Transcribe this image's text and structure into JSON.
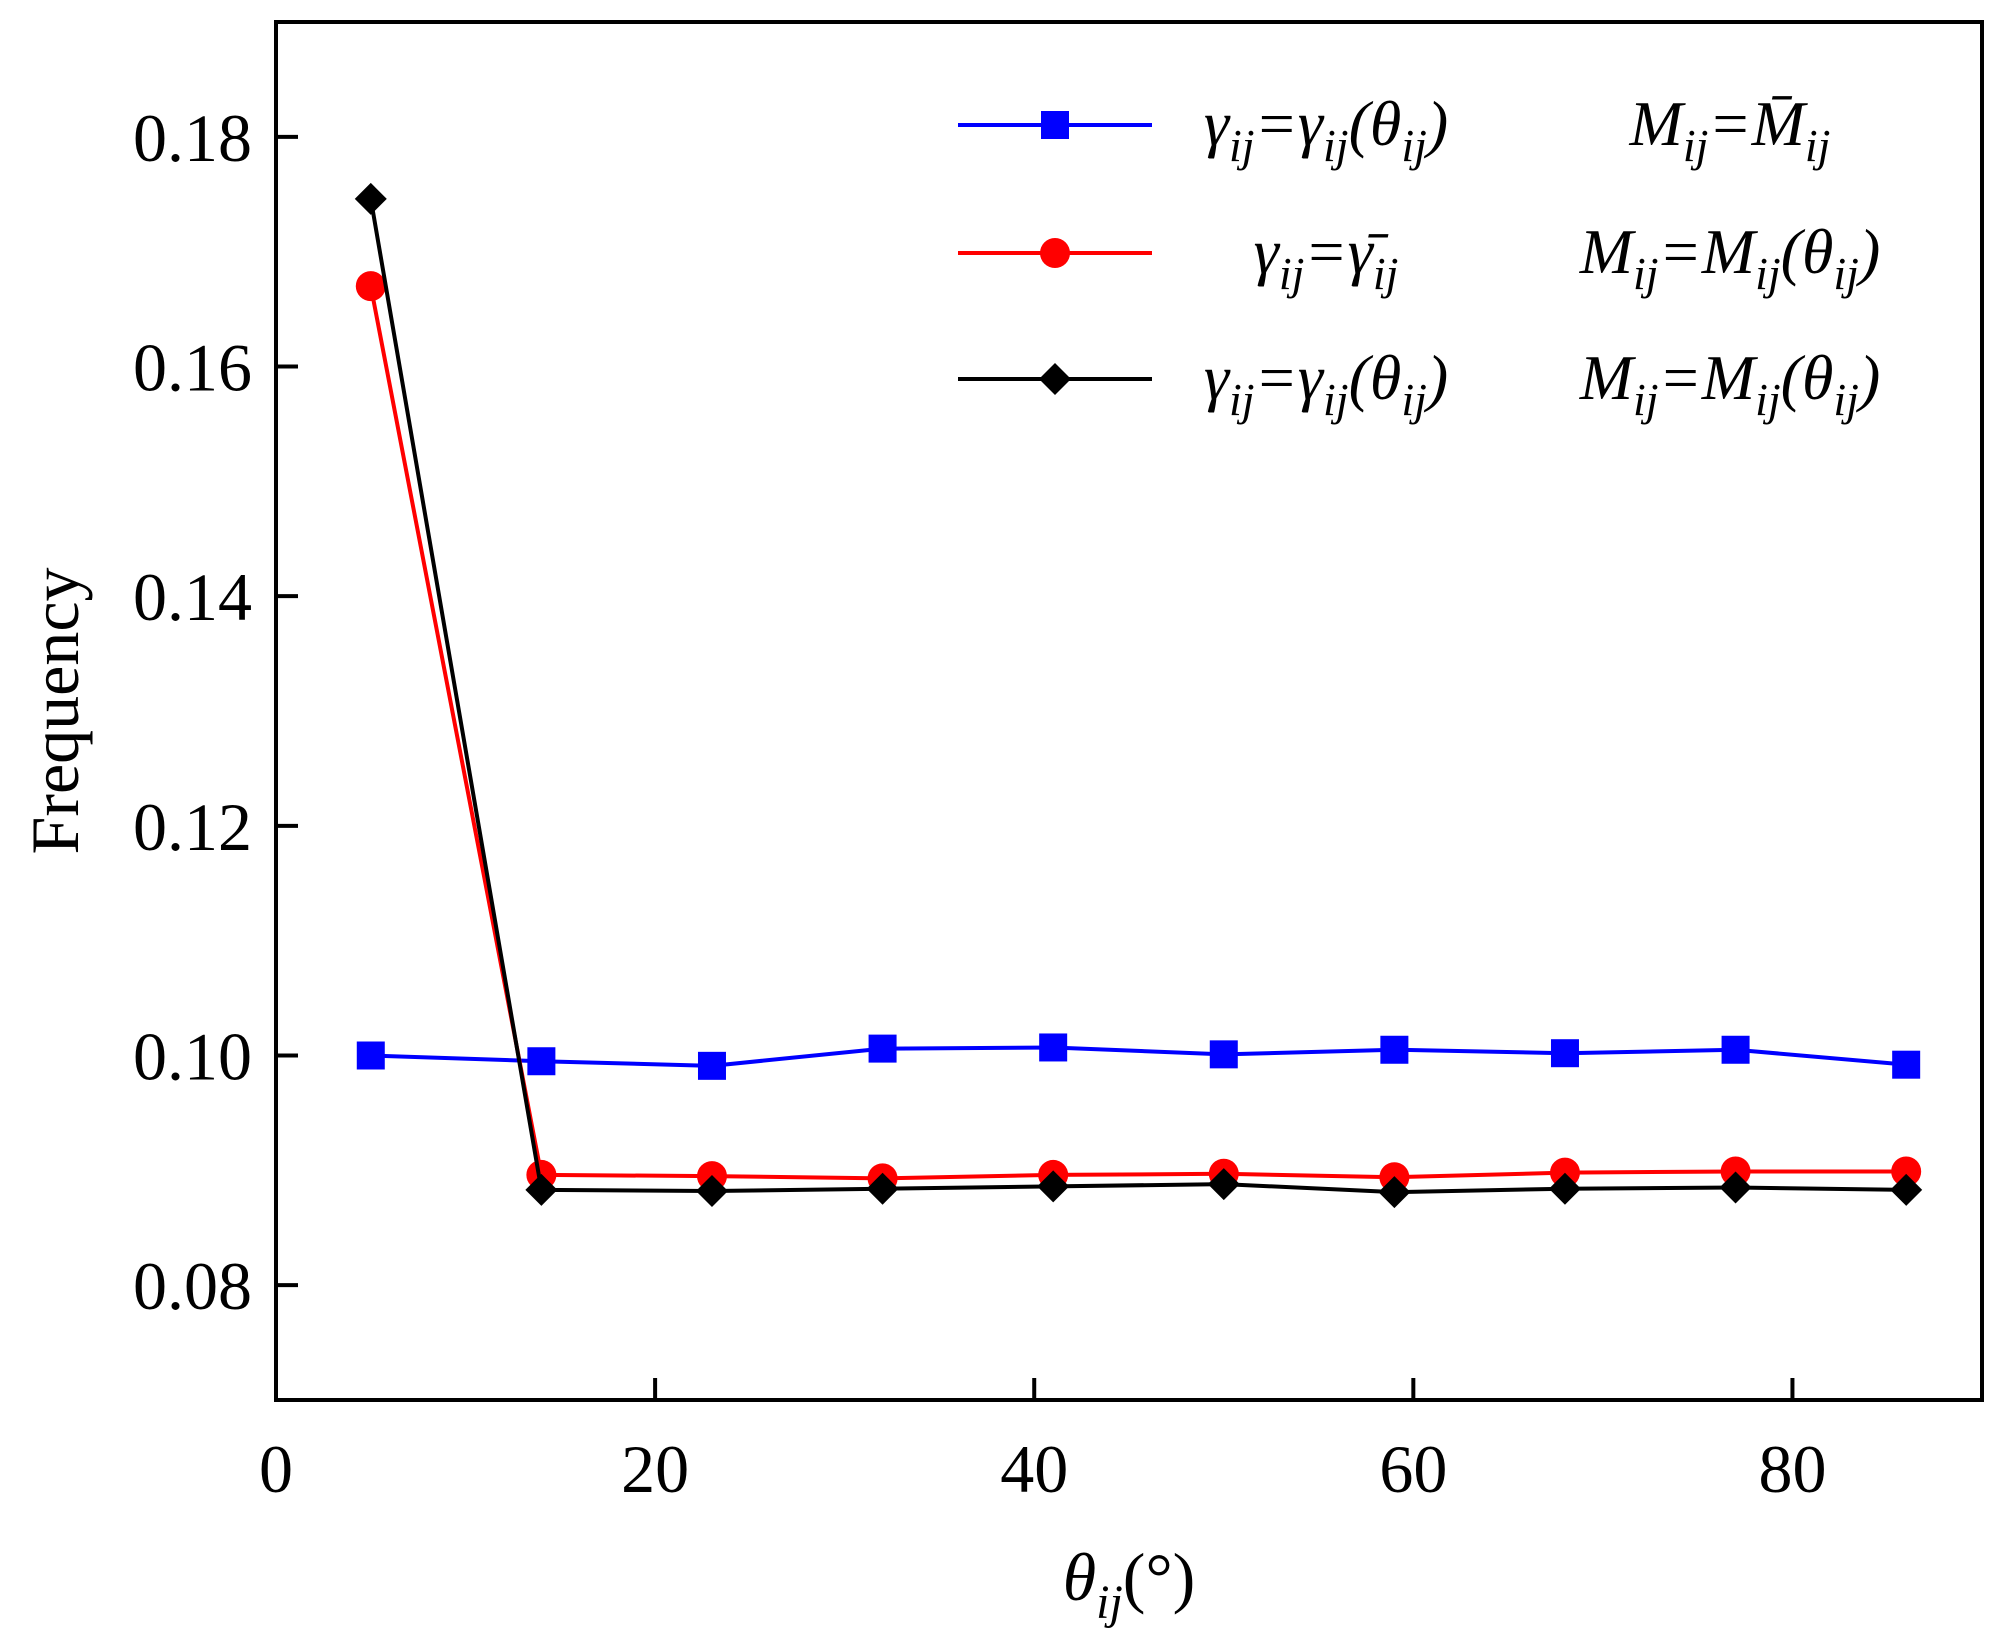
{
  "chart_data": {
    "type": "line",
    "title": "",
    "xlabel": "θij(°)",
    "ylabel": "Frequency",
    "xlim": [
      0,
      90
    ],
    "ylim": [
      0.07,
      0.19
    ],
    "xticks": [
      0,
      20,
      40,
      60,
      80
    ],
    "yticks": [
      0.08,
      0.1,
      0.12,
      0.14,
      0.16,
      0.18
    ],
    "xtick_labels": [
      "0",
      "20",
      "40",
      "60",
      "80"
    ],
    "ytick_labels": [
      "0.08",
      "0.10",
      "0.12",
      "0.14",
      "0.16",
      "0.18"
    ],
    "grid": false,
    "legend_position": "top-right",
    "x": [
      5,
      14,
      23,
      32,
      41,
      50,
      59,
      68,
      77,
      86
    ],
    "series": [
      {
        "name": "γij=γij(θij)  Mij=M̄ij",
        "legend_left": "γij=γij(θij)",
        "legend_right": "Mij=M̄ij",
        "color": "#0000ff",
        "marker": "square",
        "values": [
          0.1,
          0.0995,
          0.0991,
          0.1006,
          0.1007,
          0.1001,
          0.1005,
          0.1002,
          0.1005,
          0.0992
        ]
      },
      {
        "name": "γij=γ̄ij  Mij=Mij(θij)",
        "legend_left": "γij=γ̄ij",
        "legend_right": "Mij=Mij(θij)",
        "color": "#ff0000",
        "marker": "circle",
        "values": [
          0.167,
          0.0896,
          0.0895,
          0.0893,
          0.0896,
          0.0897,
          0.0894,
          0.0898,
          0.0899,
          0.0899
        ]
      },
      {
        "name": "γij=γij(θij)  Mij=Mij(θij)",
        "legend_left": "γij=γij(θij)",
        "legend_right": "Mij=Mij(θij)",
        "color": "#000000",
        "marker": "diamond",
        "values": [
          0.1746,
          0.0883,
          0.0882,
          0.0884,
          0.0886,
          0.0888,
          0.0881,
          0.0884,
          0.0885,
          0.0883
        ]
      }
    ]
  }
}
